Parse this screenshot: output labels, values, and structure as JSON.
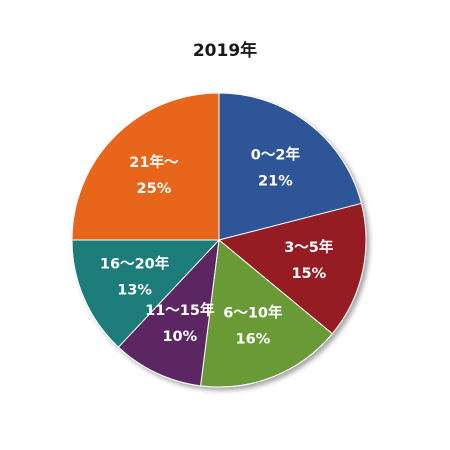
{
  "chart_data": {
    "type": "pie",
    "title": "2019年",
    "categories": [
      "0～2年",
      "3～5年",
      "6～10年",
      "11～15年",
      "16～20年",
      "21年～"
    ],
    "values": [
      21,
      15,
      16,
      10,
      13,
      25
    ],
    "value_labels": [
      "21%",
      "15%",
      "16%",
      "10%",
      "13%",
      "25%"
    ],
    "colors": [
      "#2E5597",
      "#941B22",
      "#6B9A35",
      "#5B2663",
      "#1A7B79",
      "#E8661C"
    ],
    "start_angle_deg": 0,
    "direction": "clockwise",
    "legend": "none",
    "labels_position": "inside"
  }
}
